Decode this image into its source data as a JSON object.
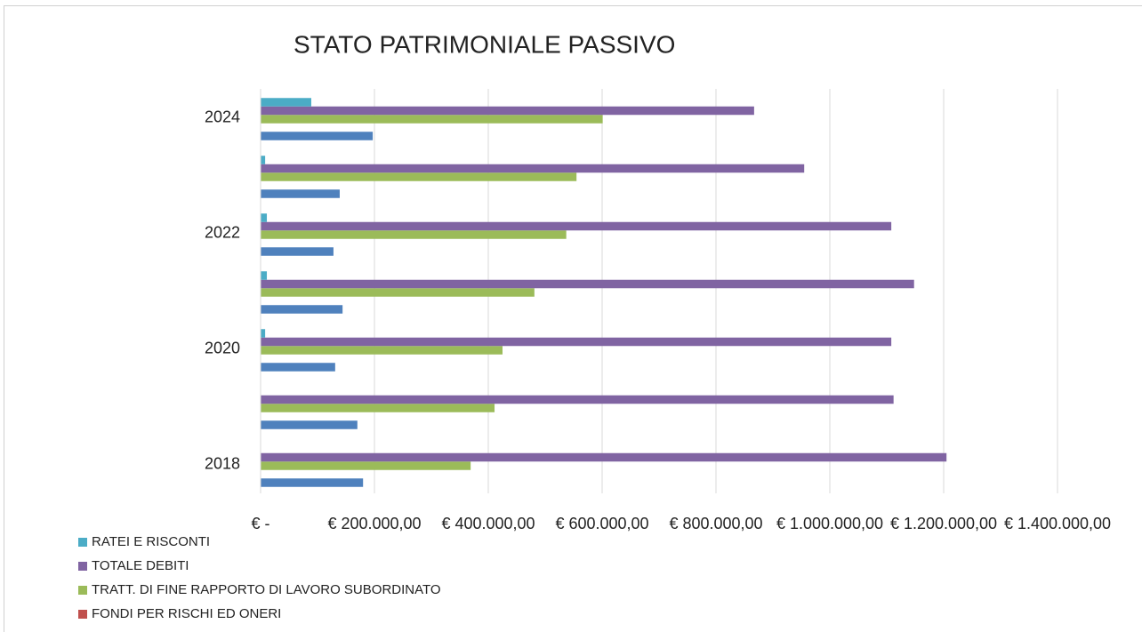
{
  "chart_data": {
    "type": "hbar",
    "title": "STATO PATRIMONIALE PASSIVO",
    "categories": [
      "2018",
      null,
      "2020",
      null,
      "2022",
      null,
      "2024"
    ],
    "series": [
      {
        "color": "#4f81bd",
        "values": [
          180000,
          170000,
          131000,
          144000,
          128000,
          139000,
          197000
        ]
      },
      {
        "name": "FONDI PER RISCHI ED ONERI",
        "color": "#c0504d",
        "values": [
          0,
          0,
          0,
          0,
          0,
          0,
          0
        ]
      },
      {
        "name": "TRATT. DI FINE RAPPORTO DI LAVORO SUBORDINATO",
        "color": "#9bbb59",
        "values": [
          369000,
          411000,
          425000,
          481000,
          537000,
          555000,
          601000
        ]
      },
      {
        "name": "TOTALE DEBITI",
        "color": "#8064a2",
        "values": [
          1205000,
          1112000,
          1108000,
          1148000,
          1108000,
          955000,
          867000
        ]
      },
      {
        "name": "RATEI E RISCONTI",
        "color": "#4bacc6",
        "values": [
          0,
          0,
          8000,
          11000,
          11000,
          8000,
          89000
        ]
      }
    ],
    "xlim": [
      0,
      1400000
    ],
    "xticks": [
      {
        "value": 0,
        "label": "€ -"
      },
      {
        "value": 200000,
        "label": "€ 200.000,00"
      },
      {
        "value": 400000,
        "label": "€ 400.000,00"
      },
      {
        "value": 600000,
        "label": "€ 600.000,00"
      },
      {
        "value": 800000,
        "label": "€ 800.000,00"
      },
      {
        "value": 1000000,
        "label": "€ 1.000.000,00"
      },
      {
        "value": 1200000,
        "label": "€ 1.200.000,00"
      },
      {
        "value": 1400000,
        "label": "€ 1.400.000,00"
      }
    ],
    "grid": true,
    "legend": "bottom-left"
  }
}
